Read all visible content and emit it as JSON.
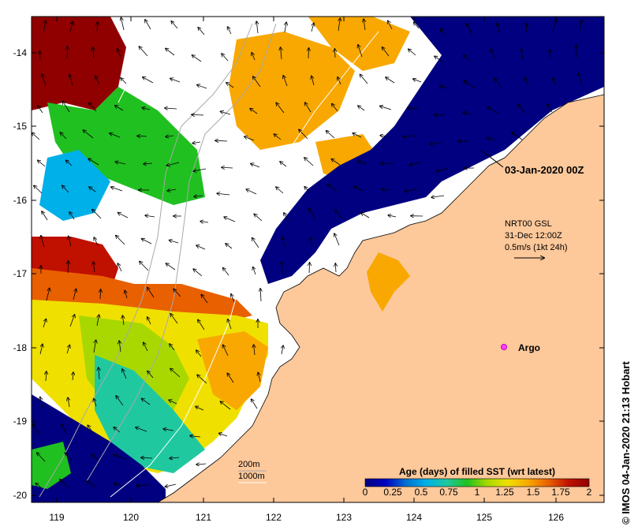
{
  "map": {
    "lat_ticks": [
      "-14",
      "-15",
      "-16",
      "-17",
      "-18",
      "-19",
      "-20"
    ],
    "lon_ticks": [
      "119",
      "120",
      "121",
      "122",
      "123",
      "124",
      "125",
      "126"
    ],
    "timestamp_label": "03-Jan-2020 00Z",
    "wind": {
      "line1": "NRT00 GSL",
      "line2": "31-Dec 12:00Z",
      "line3": "0.5m/s (1kt 24h)"
    },
    "argo_label": "Argo",
    "contours": {
      "c200": "200m",
      "c1000": "1000m"
    },
    "credit": "© IMOS 04-Jan-2020 21:13 Hobart"
  },
  "legend": {
    "title": "Age (days) of filled SST (wrt latest)",
    "ticks": [
      "0",
      "0.25",
      "0.5",
      "0.75",
      "1",
      "1.25",
      "1.5",
      "1.75",
      "2"
    ],
    "stops": [
      "#000080",
      "#0000c0",
      "#0070d0",
      "#00b0e8",
      "#20c8a0",
      "#20c020",
      "#a8d800",
      "#f0e000",
      "#f8a800",
      "#e86000",
      "#c01000",
      "#900000"
    ]
  },
  "colors": {
    "land": "#fdc89a",
    "coast": "#000000",
    "contour": "#a8a8a8"
  }
}
